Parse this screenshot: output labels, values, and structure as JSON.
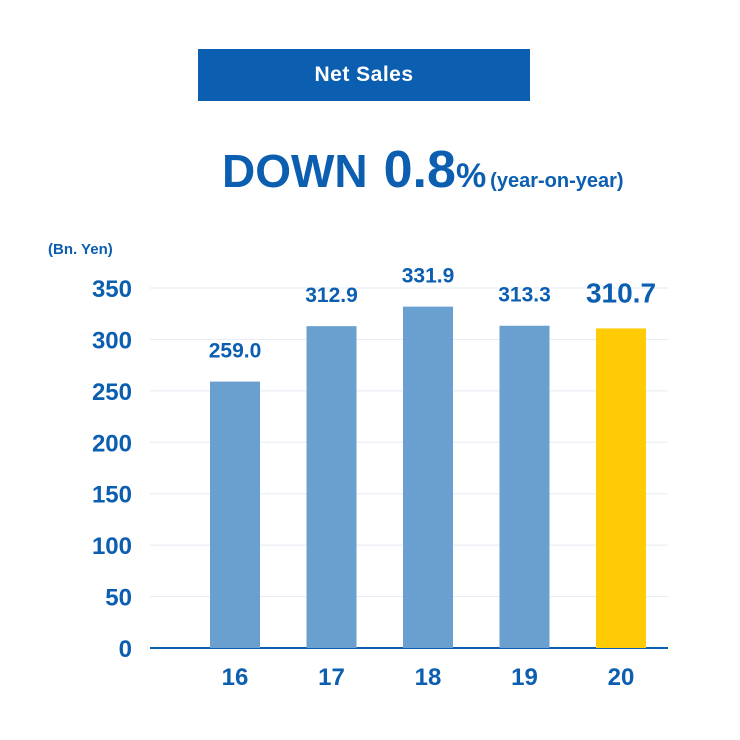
{
  "banner": {
    "title": "Net Sales"
  },
  "headline": {
    "direction": "DOWN",
    "value": "0.8",
    "unit": "%",
    "note": "(year-on-year)"
  },
  "chart_data": {
    "type": "bar",
    "title": "Net Sales",
    "ylabel": "(Bn. Yen)",
    "xlabel": "",
    "categories": [
      "16",
      "17",
      "18",
      "19",
      "20"
    ],
    "values": [
      259.0,
      312.9,
      331.9,
      313.3,
      310.7
    ],
    "value_labels": [
      "259.0",
      "312.9",
      "331.9",
      "313.3",
      "310.7"
    ],
    "highlight_index": 4,
    "ylim": [
      0,
      350
    ],
    "yticks": [
      0,
      50,
      100,
      150,
      200,
      250,
      300,
      350
    ],
    "grid": true,
    "colors": {
      "bar": "#6aa0d0",
      "highlight": "#ffcb05",
      "text": "#0b5eb0",
      "grid": "#e4ebf2",
      "axis": "#0b5eb0"
    }
  }
}
